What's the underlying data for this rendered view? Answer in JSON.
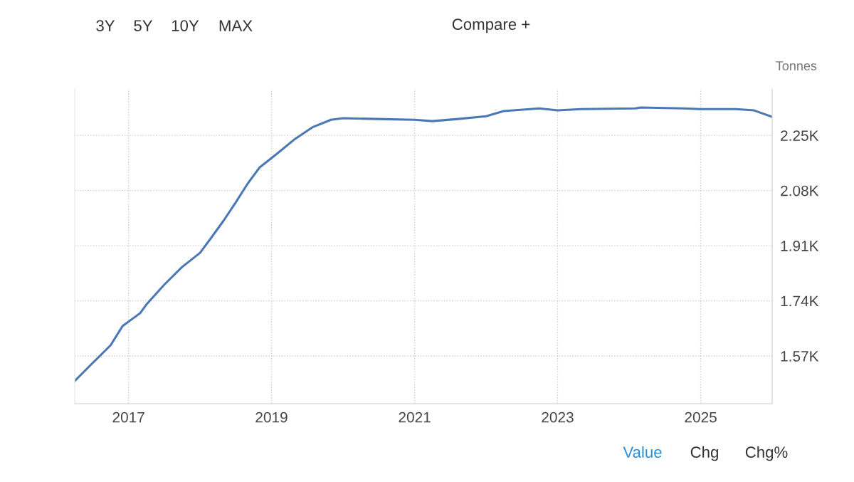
{
  "chart_data": {
    "type": "line",
    "ylabel": "Tonnes",
    "x": [
      "2016-04",
      "2016-07",
      "2016-10",
      "2016-12",
      "2017-03",
      "2017-04",
      "2017-07",
      "2017-10",
      "2018-01",
      "2018-03",
      "2018-05",
      "2018-07",
      "2018-09",
      "2018-11",
      "2019-02",
      "2019-05",
      "2019-08",
      "2019-11",
      "2020-01",
      "2020-08",
      "2021-01",
      "2021-04",
      "2021-08",
      "2022-01",
      "2022-04",
      "2022-10",
      "2023-01",
      "2023-05",
      "2024-02",
      "2024-03",
      "2024-10",
      "2025-01",
      "2025-07",
      "2025-10",
      "2026-01"
    ],
    "series": [
      {
        "color": "#4a78b5",
        "values": [
          1493,
          1548,
          1603,
          1662,
          1702,
          1728,
          1789,
          1844,
          1888,
          1936,
          1987,
          2042,
          2101,
          2151,
          2195,
          2239,
          2276,
          2298,
          2303,
          2300,
          2298,
          2294,
          2300,
          2309,
          2325,
          2333,
          2327,
          2331,
          2333,
          2336,
          2333,
          2331,
          2331,
          2327,
          2307
        ]
      }
    ],
    "xlim": [
      "2016-04",
      "2026-01"
    ],
    "xticks": [
      {
        "value": "2017-01",
        "label": "2017"
      },
      {
        "value": "2019-01",
        "label": "2019"
      },
      {
        "value": "2021-01",
        "label": "2021"
      },
      {
        "value": "2023-01",
        "label": "2023"
      },
      {
        "value": "2025-01",
        "label": "2025"
      }
    ],
    "ylim": [
      1423,
      2393
    ],
    "yticks": [
      {
        "value": 1570,
        "label": "1.57K"
      },
      {
        "value": 1740,
        "label": "1.74K"
      },
      {
        "value": 1910,
        "label": "1.91K"
      },
      {
        "value": 2080,
        "label": "2.08K"
      },
      {
        "value": 2250,
        "label": "2.25K"
      }
    ],
    "grid": true,
    "line_style": "solid",
    "marker": "none",
    "annotations": [
      "3Y",
      "5Y",
      "10Y",
      "MAX",
      "Compare +",
      "Value",
      "Chg",
      "Chg%"
    ]
  }
}
